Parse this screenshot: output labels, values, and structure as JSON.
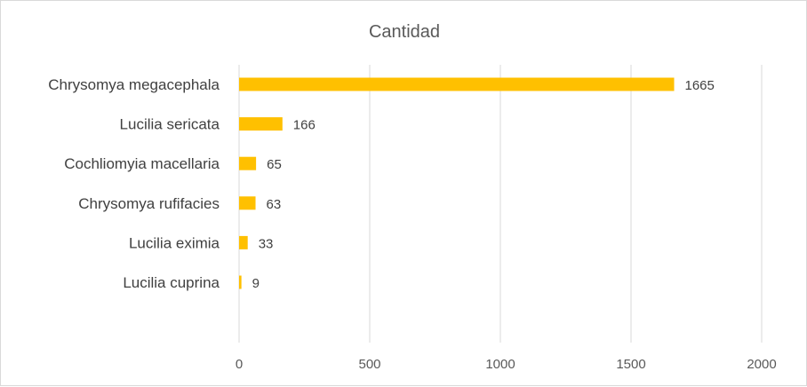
{
  "chart_data": {
    "type": "bar",
    "orientation": "horizontal",
    "title": "Cantidad",
    "categories": [
      "Chrysomya megacephala",
      "Lucilia sericata",
      "Cochliomyia macellaria",
      "Chrysomya rufifacies",
      "Lucilia  eximia",
      "Lucilia cuprina"
    ],
    "values": [
      1665,
      166,
      65,
      63,
      33,
      9
    ],
    "xlim": [
      0,
      2000
    ],
    "xticks": [
      0,
      500,
      1000,
      1500,
      2000
    ],
    "xlabel": "",
    "ylabel": "",
    "grid": true,
    "bar_color": "#FFC000",
    "data_labels": true
  }
}
